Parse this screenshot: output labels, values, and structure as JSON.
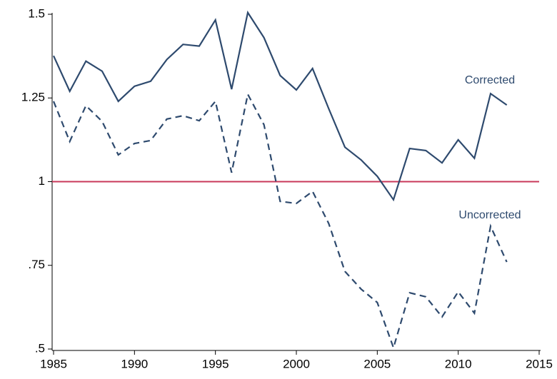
{
  "chart_data": {
    "type": "line",
    "x": [
      1985,
      1986,
      1987,
      1988,
      1989,
      1990,
      1991,
      1992,
      1993,
      1994,
      1995,
      1996,
      1997,
      1998,
      1999,
      2000,
      2001,
      2002,
      2003,
      2004,
      2005,
      2006,
      2007,
      2008,
      2009,
      2010,
      2011,
      2012,
      2013
    ],
    "series": [
      {
        "name": "Corrected",
        "color": "#2e4a6e",
        "style": "solid",
        "values": [
          1.376,
          1.27,
          1.36,
          1.33,
          1.24,
          1.285,
          1.3,
          1.365,
          1.41,
          1.405,
          1.483,
          1.276,
          1.505,
          1.43,
          1.317,
          1.274,
          1.338,
          1.218,
          1.103,
          1.065,
          1.016,
          0.946,
          1.099,
          1.093,
          1.056,
          1.125,
          1.07,
          1.263,
          1.229
        ]
      },
      {
        "name": "Uncorrected",
        "color": "#2e4a6e",
        "style": "dashed",
        "values": [
          1.24,
          1.12,
          1.227,
          1.18,
          1.08,
          1.114,
          1.123,
          1.187,
          1.197,
          1.182,
          1.24,
          1.027,
          1.261,
          1.17,
          0.941,
          0.935,
          0.971,
          0.875,
          0.732,
          0.679,
          0.639,
          0.504,
          0.668,
          0.656,
          0.596,
          0.671,
          0.607,
          0.867,
          0.76
        ]
      }
    ],
    "xlim": [
      1985,
      2015
    ],
    "xticks": [
      1985,
      1990,
      1995,
      2000,
      2005,
      2010,
      2015
    ],
    "ylim": [
      0.5,
      1.5
    ],
    "yticks": [
      {
        "value": 0.5,
        "label": ".5"
      },
      {
        "value": 0.75,
        "label": ".75"
      },
      1,
      1.25,
      1.5
    ],
    "hline": {
      "value": 1,
      "color": "#c8385a"
    }
  }
}
